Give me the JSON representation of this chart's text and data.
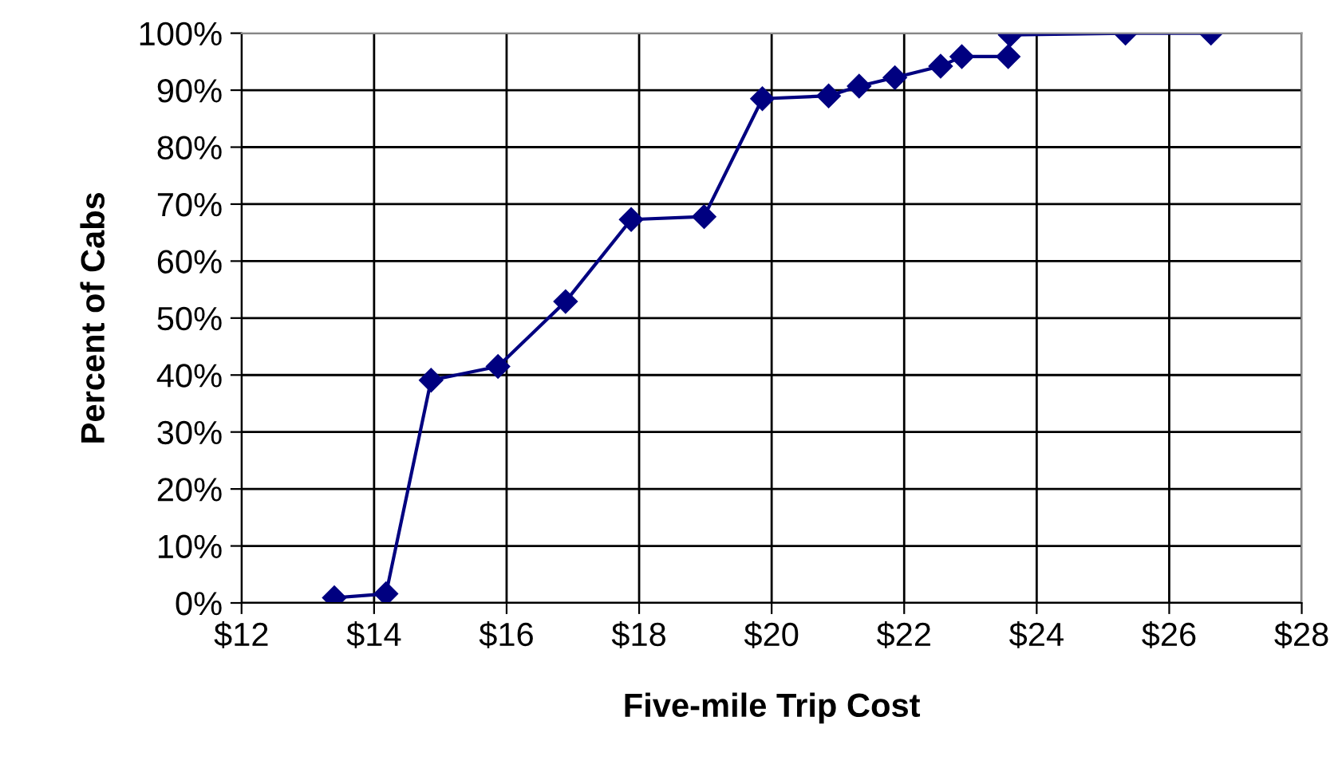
{
  "chart_data": {
    "type": "line",
    "xlabel": "Five-mile Trip Cost",
    "ylabel": "Percent of Cabs",
    "x": [
      13.4,
      14.18,
      14.86,
      15.87,
      16.89,
      17.88,
      18.98,
      19.86,
      20.86,
      21.32,
      21.86,
      22.55,
      22.87,
      23.57,
      23.6,
      25.34,
      26.63
    ],
    "series": [
      {
        "color": "#000080",
        "values": [
          0.9,
          1.6,
          39.1,
          41.5,
          52.9,
          67.3,
          67.8,
          88.5,
          89.0,
          90.7,
          92.2,
          94.2,
          95.9,
          95.9,
          99.7,
          100,
          100
        ]
      }
    ],
    "marker": "diamond",
    "line_style": "solid",
    "grid": true,
    "legend": false,
    "xlim": [
      12,
      28
    ],
    "xticks": [
      {
        "value": 12,
        "label": "$12"
      },
      {
        "value": 14,
        "label": "$14"
      },
      {
        "value": 16,
        "label": "$16"
      },
      {
        "value": 18,
        "label": "$18"
      },
      {
        "value": 20,
        "label": "$20"
      },
      {
        "value": 22,
        "label": "$22"
      },
      {
        "value": 24,
        "label": "$24"
      },
      {
        "value": 26,
        "label": "$26"
      },
      {
        "value": 28,
        "label": "$28"
      }
    ],
    "ylim": [
      0,
      100
    ],
    "yticks": [
      {
        "value": 0,
        "label": "0%"
      },
      {
        "value": 10,
        "label": "10%"
      },
      {
        "value": 20,
        "label": "20%"
      },
      {
        "value": 30,
        "label": "30%"
      },
      {
        "value": 40,
        "label": "40%"
      },
      {
        "value": 50,
        "label": "50%"
      },
      {
        "value": 60,
        "label": "60%"
      },
      {
        "value": 70,
        "label": "70%"
      },
      {
        "value": 80,
        "label": "80%"
      },
      {
        "value": 90,
        "label": "90%"
      },
      {
        "value": 100,
        "label": "100%"
      }
    ]
  }
}
